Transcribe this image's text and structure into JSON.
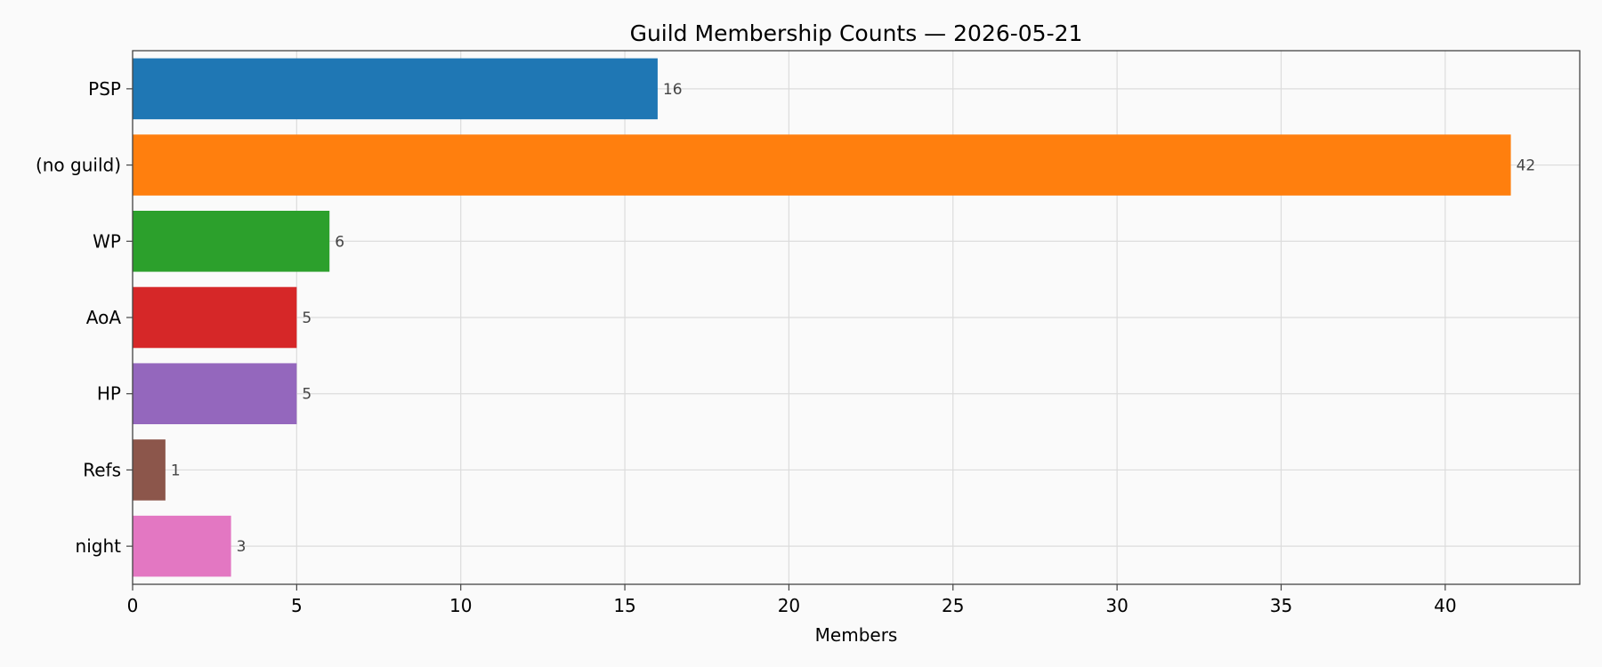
{
  "chart_data": {
    "type": "bar",
    "orientation": "horizontal",
    "title": "Guild Membership Counts — 2026-05-21",
    "xlabel": "Members",
    "ylabel": "",
    "xlim": [
      0,
      44.1
    ],
    "xticks": [
      0,
      5,
      10,
      15,
      20,
      25,
      30,
      35,
      40
    ],
    "grid": true,
    "legend": "none",
    "categories": [
      "PSP",
      "(no guild)",
      "WP",
      "AoA",
      "HP",
      "Refs",
      "night"
    ],
    "values": [
      16,
      42,
      6,
      5,
      5,
      1,
      3
    ],
    "colors": [
      "#1f77b4",
      "#ff7f0e",
      "#2ca02c",
      "#d62728",
      "#9467bd",
      "#8c564b",
      "#e377c2"
    ],
    "data_labels": [
      "16",
      "42",
      "6",
      "5",
      "5",
      "1",
      "3"
    ]
  }
}
